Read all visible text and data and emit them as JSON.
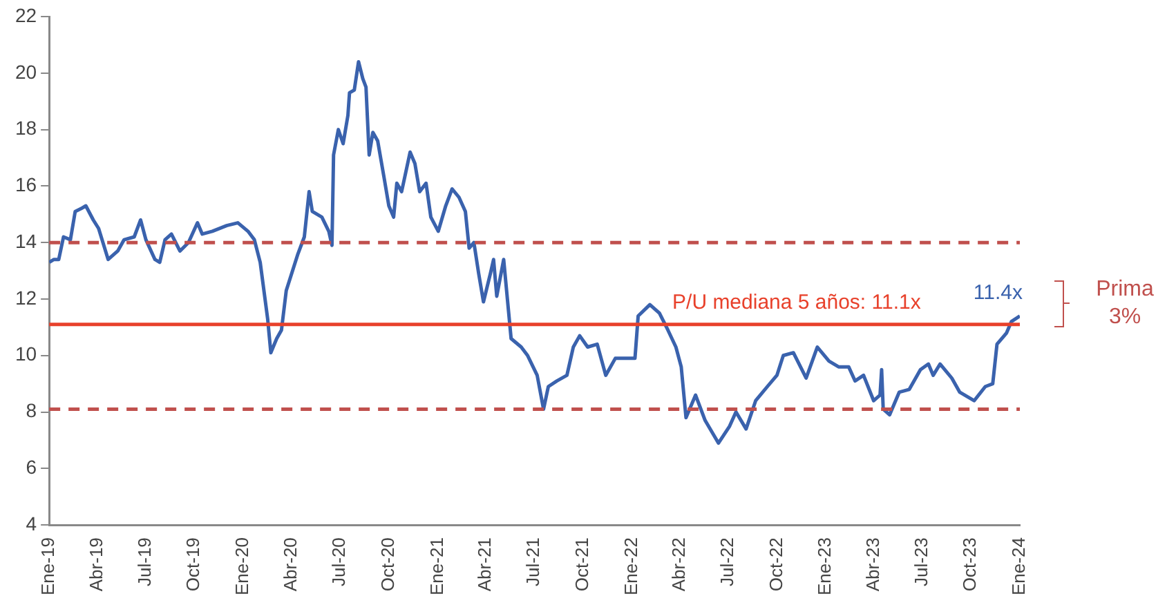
{
  "chart_data": {
    "type": "line",
    "x": [
      "2019-01-01",
      "2019-01-10",
      "2019-01-19",
      "2019-01-28",
      "2019-02-10",
      "2019-02-19",
      "2019-03-02",
      "2019-03-11",
      "2019-03-25",
      "2019-04-04",
      "2019-04-22",
      "2019-05-10",
      "2019-05-22",
      "2019-06-10",
      "2019-06-22",
      "2019-07-02",
      "2019-07-19",
      "2019-07-28",
      "2019-08-07",
      "2019-08-19",
      "2019-09-04",
      "2019-09-20",
      "2019-10-07",
      "2019-10-16",
      "2019-11-04",
      "2019-12-01",
      "2019-12-22",
      "2020-01-10",
      "2020-01-22",
      "2020-02-02",
      "2020-02-16",
      "2020-02-22",
      "2020-03-04",
      "2020-03-13",
      "2020-03-22",
      "2020-04-13",
      "2020-04-25",
      "2020-05-04",
      "2020-05-10",
      "2020-05-28",
      "2020-06-10",
      "2020-06-16",
      "2020-06-19",
      "2020-06-28",
      "2020-07-07",
      "2020-07-16",
      "2020-07-19",
      "2020-07-28",
      "2020-08-05",
      "2020-08-13",
      "2020-08-19",
      "2020-08-25",
      "2020-09-01",
      "2020-09-10",
      "2020-09-22",
      "2020-10-01",
      "2020-10-10",
      "2020-10-16",
      "2020-10-25",
      "2020-11-10",
      "2020-11-19",
      "2020-11-28",
      "2020-12-10",
      "2020-12-19",
      "2021-01-02",
      "2021-01-16",
      "2021-01-28",
      "2021-02-10",
      "2021-02-22",
      "2021-03-01",
      "2021-03-10",
      "2021-03-19",
      "2021-03-28",
      "2021-04-10",
      "2021-04-16",
      "2021-04-22",
      "2021-05-05",
      "2021-05-19",
      "2021-06-07",
      "2021-06-19",
      "2021-07-07",
      "2021-07-19",
      "2021-07-28",
      "2021-08-13",
      "2021-09-01",
      "2021-09-13",
      "2021-09-25",
      "2021-10-10",
      "2021-10-28",
      "2021-11-13",
      "2021-12-01",
      "2022-01-07",
      "2022-01-13",
      "2022-02-04",
      "2022-02-22",
      "2022-03-10",
      "2022-03-25",
      "2022-04-04",
      "2022-04-13",
      "2022-05-01",
      "2022-05-19",
      "2022-06-13",
      "2022-07-04",
      "2022-07-16",
      "2022-08-04",
      "2022-08-22",
      "2022-09-13",
      "2022-10-01",
      "2022-10-13",
      "2022-11-01",
      "2022-11-25",
      "2022-12-16",
      "2023-01-07",
      "2023-01-25",
      "2023-02-13",
      "2023-02-25",
      "2023-03-13",
      "2023-04-01",
      "2023-04-13",
      "2023-04-16",
      "2023-04-19",
      "2023-05-01",
      "2023-05-19",
      "2023-06-07",
      "2023-06-28",
      "2023-07-13",
      "2023-07-22",
      "2023-08-04",
      "2023-08-26",
      "2023-09-10",
      "2023-10-07",
      "2023-10-28",
      "2023-11-11",
      "2023-11-19",
      "2023-12-07",
      "2023-12-16",
      "2024-01-01"
    ],
    "series": [
      {
        "color": "#3a62ad",
        "values": [
          13.3,
          13.4,
          13.4,
          14.2,
          14.1,
          15.1,
          15.2,
          15.3,
          14.8,
          14.5,
          13.4,
          13.7,
          14.1,
          14.2,
          14.8,
          14.1,
          13.4,
          13.3,
          14.1,
          14.3,
          13.7,
          14.0,
          14.7,
          14.3,
          14.4,
          14.6,
          14.7,
          14.4,
          14.1,
          13.3,
          11.3,
          10.1,
          10.6,
          10.9,
          12.3,
          13.6,
          14.2,
          15.8,
          15.1,
          14.9,
          14.4,
          13.9,
          17.1,
          18.0,
          17.5,
          18.5,
          19.3,
          19.4,
          20.4,
          19.8,
          19.5,
          17.1,
          17.9,
          17.6,
          16.3,
          15.3,
          14.9,
          16.1,
          15.8,
          17.2,
          16.8,
          15.8,
          16.1,
          14.9,
          14.4,
          15.3,
          15.9,
          15.6,
          15.1,
          13.8,
          14.0,
          12.9,
          11.9,
          12.9,
          13.4,
          12.1,
          13.4,
          10.6,
          10.3,
          10.0,
          9.3,
          8.1,
          8.9,
          9.1,
          9.3,
          10.3,
          10.7,
          10.3,
          10.4,
          9.3,
          9.9,
          9.9,
          11.4,
          11.8,
          11.5,
          10.9,
          10.3,
          9.6,
          7.8,
          8.6,
          7.7,
          6.9,
          7.5,
          8.0,
          7.4,
          8.4,
          8.9,
          9.3,
          10.0,
          10.1,
          9.2,
          10.3,
          9.8,
          9.6,
          9.6,
          9.1,
          9.3,
          8.4,
          8.6,
          9.5,
          8.1,
          7.9,
          8.7,
          8.8,
          9.5,
          9.7,
          9.3,
          9.7,
          9.2,
          8.7,
          8.4,
          8.9,
          9.0,
          10.4,
          10.8,
          11.2,
          11.4
        ]
      }
    ],
    "xlim": [
      "2019-01-01",
      "2024-01-01"
    ],
    "xticks": [
      {
        "value": "2019-01-01",
        "label": "Ene-19"
      },
      {
        "value": "2019-04-01",
        "label": "Abr-19"
      },
      {
        "value": "2019-07-01",
        "label": "Jul-19"
      },
      {
        "value": "2019-10-01",
        "label": "Oct-19"
      },
      {
        "value": "2020-01-01",
        "label": "Ene-20"
      },
      {
        "value": "2020-04-01",
        "label": "Abr-20"
      },
      {
        "value": "2020-07-01",
        "label": "Jul-20"
      },
      {
        "value": "2020-10-01",
        "label": "Oct-20"
      },
      {
        "value": "2021-01-01",
        "label": "Ene-21"
      },
      {
        "value": "2021-04-01",
        "label": "Abr-21"
      },
      {
        "value": "2021-07-01",
        "label": "Jul-21"
      },
      {
        "value": "2021-10-01",
        "label": "Oct-21"
      },
      {
        "value": "2022-01-01",
        "label": "Ene-22"
      },
      {
        "value": "2022-04-01",
        "label": "Abr-22"
      },
      {
        "value": "2022-07-01",
        "label": "Jul-22"
      },
      {
        "value": "2022-10-01",
        "label": "Oct-22"
      },
      {
        "value": "2023-01-01",
        "label": "Ene-23"
      },
      {
        "value": "2023-04-01",
        "label": "Abr-23"
      },
      {
        "value": "2023-07-01",
        "label": "Jul-23"
      },
      {
        "value": "2023-10-01",
        "label": "Oct-23"
      },
      {
        "value": "2024-01-01",
        "label": "Ene-24"
      }
    ],
    "ylim": [
      4,
      22
    ],
    "yticks": [
      4,
      6,
      8,
      10,
      12,
      14,
      16,
      18,
      20,
      22
    ],
    "ref_lines": [
      {
        "axis": "y",
        "value": 14.0,
        "color": "#c0504d",
        "line_style": "dashed"
      },
      {
        "axis": "y",
        "value": 8.1,
        "color": "#c0504d",
        "line_style": "dashed"
      },
      {
        "axis": "y",
        "value": 11.1,
        "color": "#e8412b",
        "line_style": "solid",
        "label": "P/U mediana 5 años: 11.1x"
      }
    ],
    "annotations": [
      {
        "text": "11.4x",
        "x": "2024-01-01",
        "y": 11.4
      },
      "Prima 3%"
    ],
    "grid": false,
    "legend": false,
    "marker": "none",
    "line_style": "solid"
  }
}
